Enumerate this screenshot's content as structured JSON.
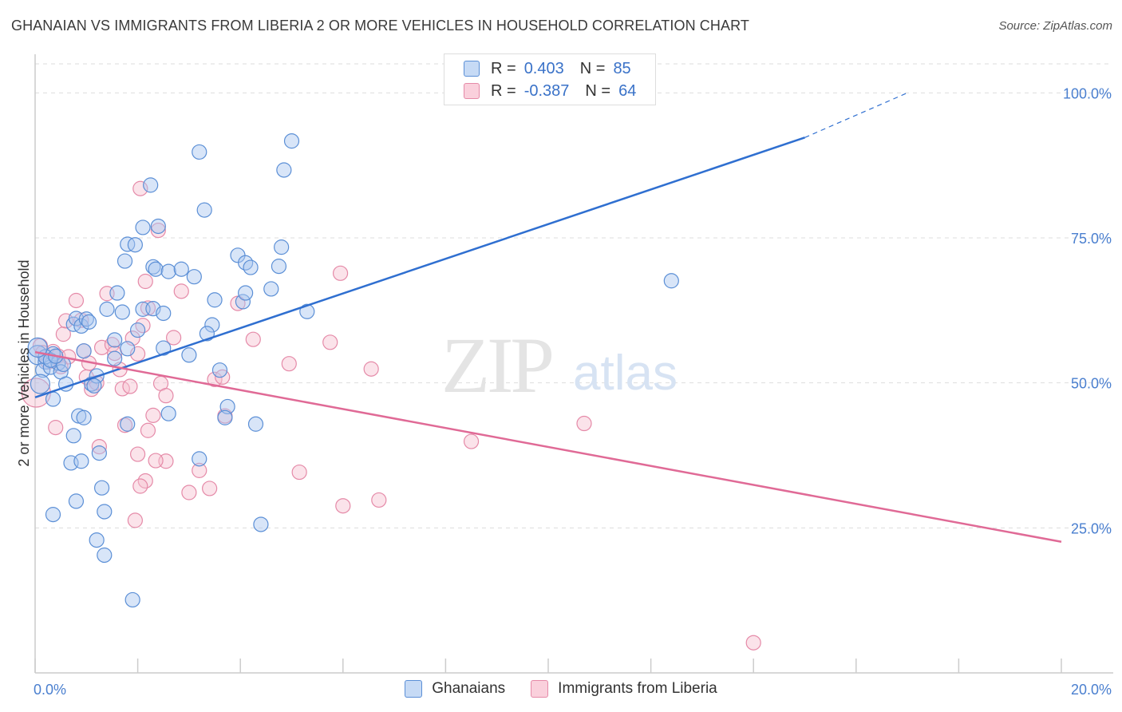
{
  "title": "GHANAIAN VS IMMIGRANTS FROM LIBERIA 2 OR MORE VEHICLES IN HOUSEHOLD CORRELATION CHART",
  "source": "Source: ZipAtlas.com",
  "watermark": {
    "zip": "ZIP",
    "atlas": "atlas"
  },
  "legend": {
    "rows": [
      {
        "r_label": "R =",
        "r_value": "0.403",
        "n_label": "N =",
        "n_value": "85",
        "color": "#a8c6ef"
      },
      {
        "r_label": "R =",
        "r_value": "-0.387",
        "n_label": "N =",
        "n_value": "64",
        "color": "#f4b4c6"
      }
    ]
  },
  "bottom_legend": [
    "Ghanaians",
    "Immigrants from Liberia"
  ],
  "colors": {
    "blue_fill": "#a8c6ef",
    "blue_stroke": "#5b8fd6",
    "blue_line": "#2f6fd0",
    "pink_fill": "#f7c1d0",
    "pink_stroke": "#e58aa8",
    "pink_line": "#e06a96",
    "grid": "#dddddd",
    "tick_text": "#4a7fcf"
  },
  "chart_data": {
    "type": "scatter",
    "title": "GHANAIAN VS IMMIGRANTS FROM LIBERIA 2 OR MORE VEHICLES IN HOUSEHOLD CORRELATION CHART",
    "xlabel": "",
    "ylabel": "2 or more Vehicles in Household",
    "xlim": [
      0,
      20
    ],
    "ylim": [
      0,
      105
    ],
    "x_tick_labels": [
      {
        "value": 0,
        "label": "0.0%"
      },
      {
        "value": 20,
        "label": "20.0%"
      }
    ],
    "y_tick_labels": [
      {
        "value": 25,
        "label": "25.0%"
      },
      {
        "value": 50,
        "label": "50.0%"
      },
      {
        "value": 75,
        "label": "75.0%"
      },
      {
        "value": 100,
        "label": "100.0%"
      }
    ],
    "grid": true,
    "legend_position": "top-center",
    "series": [
      {
        "name": "Ghanaians",
        "trend": {
          "x0": 0,
          "y0": 47.5,
          "x1": 15.0,
          "y1": 92.3,
          "dash_to_x": 17.0,
          "dash_to_y": 100.0
        },
        "points": [
          [
            0.05,
            54.8
          ],
          [
            0.2,
            53.6
          ],
          [
            0.15,
            52.2
          ],
          [
            0.1,
            49.8
          ],
          [
            0.35,
            55.0
          ],
          [
            0.3,
            52.7
          ],
          [
            0.45,
            53.4
          ],
          [
            0.5,
            51.9
          ],
          [
            0.55,
            53.2
          ],
          [
            0.35,
            47.2
          ],
          [
            0.6,
            49.8
          ],
          [
            0.75,
            60.1
          ],
          [
            0.8,
            61.1
          ],
          [
            0.9,
            59.8
          ],
          [
            1.0,
            61.0
          ],
          [
            1.05,
            60.5
          ],
          [
            0.95,
            55.5
          ],
          [
            1.1,
            49.8
          ],
          [
            1.2,
            51.2
          ],
          [
            1.15,
            49.5
          ],
          [
            0.85,
            44.3
          ],
          [
            0.75,
            40.9
          ],
          [
            0.95,
            44.0
          ],
          [
            0.7,
            36.2
          ],
          [
            0.9,
            36.5
          ],
          [
            1.25,
            37.9
          ],
          [
            1.3,
            31.9
          ],
          [
            1.35,
            27.8
          ],
          [
            1.2,
            22.9
          ],
          [
            1.35,
            20.3
          ],
          [
            1.9,
            12.6
          ],
          [
            0.8,
            29.6
          ],
          [
            0.35,
            27.3
          ],
          [
            1.4,
            62.7
          ],
          [
            1.55,
            57.4
          ],
          [
            1.55,
            54.2
          ],
          [
            1.6,
            65.5
          ],
          [
            1.75,
            71.0
          ],
          [
            1.8,
            73.9
          ],
          [
            1.7,
            62.2
          ],
          [
            1.95,
            73.8
          ],
          [
            2.0,
            59.1
          ],
          [
            1.8,
            55.9
          ],
          [
            2.1,
            76.8
          ],
          [
            2.4,
            77.0
          ],
          [
            2.3,
            70.0
          ],
          [
            2.35,
            69.6
          ],
          [
            2.1,
            62.7
          ],
          [
            2.3,
            62.8
          ],
          [
            2.5,
            62.0
          ],
          [
            2.5,
            56.0
          ],
          [
            2.6,
            69.2
          ],
          [
            2.85,
            69.6
          ],
          [
            3.1,
            68.3
          ],
          [
            3.2,
            89.8
          ],
          [
            3.3,
            79.8
          ],
          [
            3.5,
            64.3
          ],
          [
            3.45,
            60.0
          ],
          [
            3.35,
            58.5
          ],
          [
            3.0,
            54.8
          ],
          [
            3.6,
            52.2
          ],
          [
            3.75,
            45.9
          ],
          [
            3.7,
            44.0
          ],
          [
            3.95,
            72.0
          ],
          [
            4.1,
            70.7
          ],
          [
            4.2,
            69.9
          ],
          [
            4.05,
            64.0
          ],
          [
            4.1,
            65.5
          ],
          [
            4.3,
            42.9
          ],
          [
            4.6,
            66.2
          ],
          [
            4.75,
            70.1
          ],
          [
            4.8,
            73.4
          ],
          [
            4.85,
            86.7
          ],
          [
            5.0,
            91.7
          ],
          [
            5.3,
            62.3
          ],
          [
            2.6,
            44.7
          ],
          [
            3.2,
            36.9
          ],
          [
            4.4,
            25.6
          ],
          [
            1.8,
            42.9
          ],
          [
            2.25,
            84.1
          ],
          [
            12.4,
            67.6
          ],
          [
            0.2,
            54.5
          ],
          [
            0.3,
            53.9
          ],
          [
            0.4,
            54.6
          ],
          [
            0.05,
            56.1
          ]
        ]
      },
      {
        "name": "Immigrants from Liberia",
        "trend": {
          "x0": 0,
          "y0": 55.3,
          "x1": 20.0,
          "y1": 22.6
        },
        "points": [
          [
            0.02,
            48.3
          ],
          [
            0.1,
            56.4
          ],
          [
            0.15,
            55.2
          ],
          [
            0.25,
            53.6
          ],
          [
            0.35,
            55.4
          ],
          [
            0.45,
            54.6
          ],
          [
            0.55,
            58.4
          ],
          [
            0.6,
            60.7
          ],
          [
            0.8,
            64.2
          ],
          [
            0.9,
            60.8
          ],
          [
            0.95,
            55.5
          ],
          [
            1.05,
            53.4
          ],
          [
            1.1,
            48.9
          ],
          [
            1.2,
            50.0
          ],
          [
            1.3,
            56.1
          ],
          [
            1.4,
            65.4
          ],
          [
            1.5,
            56.6
          ],
          [
            1.55,
            55.1
          ],
          [
            1.65,
            52.3
          ],
          [
            1.7,
            49.0
          ],
          [
            1.85,
            49.4
          ],
          [
            1.9,
            57.7
          ],
          [
            2.0,
            55.0
          ],
          [
            2.1,
            59.9
          ],
          [
            2.2,
            62.9
          ],
          [
            2.15,
            67.5
          ],
          [
            2.4,
            76.3
          ],
          [
            2.45,
            49.9
          ],
          [
            2.55,
            47.8
          ],
          [
            2.3,
            44.4
          ],
          [
            2.2,
            41.8
          ],
          [
            2.55,
            36.5
          ],
          [
            2.35,
            36.6
          ],
          [
            2.0,
            37.7
          ],
          [
            2.15,
            33.1
          ],
          [
            2.05,
            32.2
          ],
          [
            1.95,
            26.3
          ],
          [
            1.75,
            42.7
          ],
          [
            1.25,
            39.0
          ],
          [
            2.7,
            57.8
          ],
          [
            2.85,
            65.8
          ],
          [
            3.0,
            31.1
          ],
          [
            3.2,
            34.9
          ],
          [
            3.4,
            31.8
          ],
          [
            3.5,
            50.6
          ],
          [
            3.65,
            51.0
          ],
          [
            3.7,
            44.3
          ],
          [
            3.95,
            63.7
          ],
          [
            4.25,
            57.5
          ],
          [
            4.95,
            53.3
          ],
          [
            5.15,
            34.6
          ],
          [
            5.75,
            57.0
          ],
          [
            5.95,
            68.9
          ],
          [
            6.0,
            28.8
          ],
          [
            6.55,
            52.4
          ],
          [
            6.7,
            29.8
          ],
          [
            8.5,
            39.9
          ],
          [
            10.7,
            43.0
          ],
          [
            14.0,
            5.2
          ],
          [
            2.05,
            83.5
          ],
          [
            0.4,
            42.3
          ],
          [
            0.65,
            54.5
          ],
          [
            0.5,
            52.8
          ],
          [
            1.0,
            51.0
          ]
        ]
      }
    ]
  }
}
